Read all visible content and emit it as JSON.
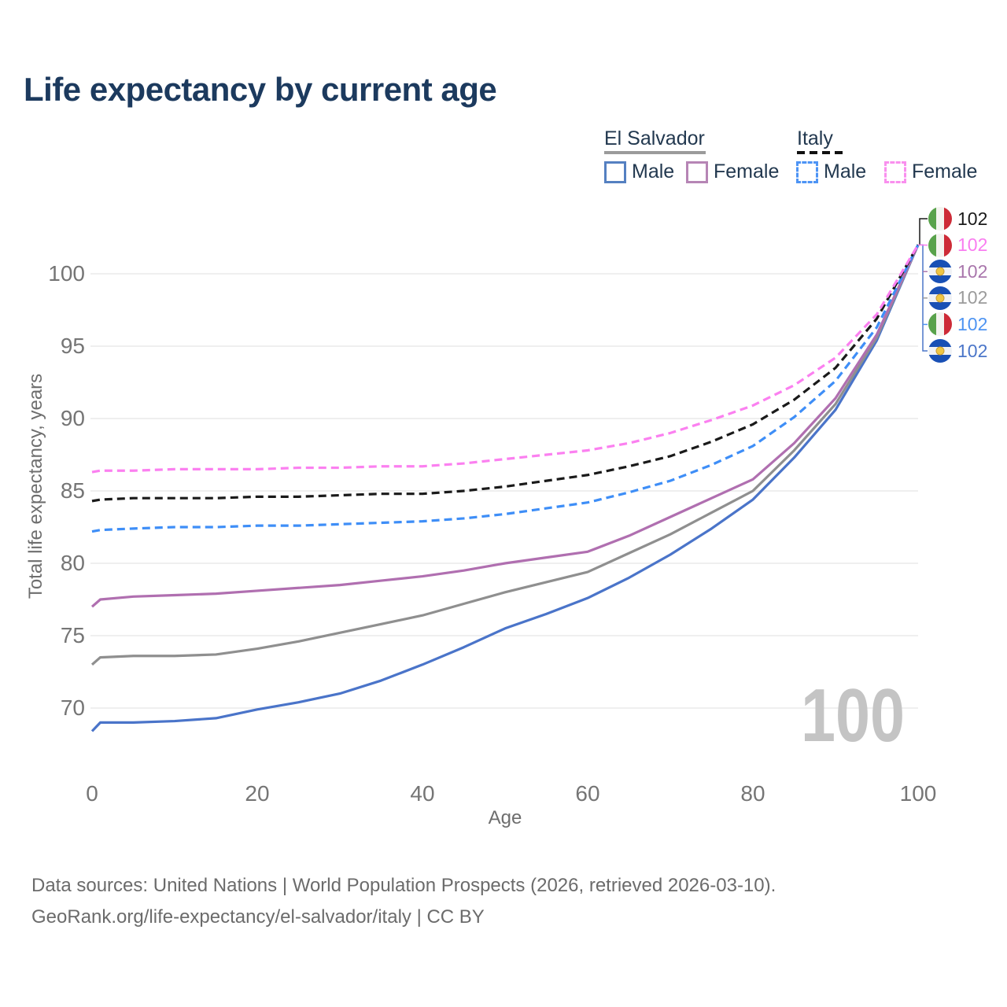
{
  "title": "Life expectancy by current age",
  "y_axis_title": "Total life expectancy, years",
  "x_axis_title": "Age",
  "watermark_age": "100",
  "legend": {
    "groups": [
      {
        "label": "El Salvador",
        "line_style": "solid",
        "sample_color": "#9B9B9B",
        "items": [
          {
            "label": "Male",
            "swatch_color": "#5580C1",
            "dashed": false
          },
          {
            "label": "Female",
            "swatch_color": "#B685B5",
            "dashed": false
          }
        ]
      },
      {
        "label": "Italy",
        "line_style": "dashed",
        "sample_color": "#111111",
        "items": [
          {
            "label": "Male",
            "swatch_color": "#4D94F5",
            "dashed": true
          },
          {
            "label": "Female",
            "swatch_color": "#F990EE",
            "dashed": true
          }
        ]
      }
    ]
  },
  "end_labels": [
    {
      "flag": "italy",
      "value": "102",
      "color": "#1A1A1A"
    },
    {
      "flag": "italy",
      "value": "102",
      "color": "#F97DF0"
    },
    {
      "flag": "el-salvador",
      "value": "102",
      "color": "#A976AC"
    },
    {
      "flag": "el-salvador",
      "value": "102",
      "color": "#9B9B9B"
    },
    {
      "flag": "italy",
      "value": "102",
      "color": "#4E94F2"
    },
    {
      "flag": "el-salvador",
      "value": "102",
      "color": "#4B76C9"
    }
  ],
  "footer": {
    "line1": "Data sources: United Nations | World Population Prospects (2026, retrieved 2026-03-10).",
    "line2": "GeoRank.org/life-expectancy/el-salvador/italy | CC BY"
  },
  "chart_data": {
    "type": "line",
    "title": "Life expectancy by current age",
    "xlabel": "Age",
    "ylabel": "Total life expectancy, years",
    "xlim": [
      0,
      100
    ],
    "ylim": [
      68,
      102.5
    ],
    "x_ticks": [
      0,
      20,
      40,
      60,
      80,
      100
    ],
    "y_ticks": [
      70,
      75,
      80,
      85,
      90,
      95,
      100
    ],
    "grid": "horizontal",
    "legend_position": "top-right",
    "x": [
      0,
      1,
      5,
      10,
      15,
      20,
      25,
      30,
      35,
      40,
      45,
      50,
      55,
      60,
      65,
      70,
      75,
      80,
      85,
      90,
      95,
      100
    ],
    "series": [
      {
        "id": "el-salvador-male",
        "name": "El Salvador Male",
        "country": "El Salvador",
        "sex": "Male",
        "color": "#4A74C9",
        "dashed": false,
        "values": [
          68.4,
          69.0,
          69.0,
          69.1,
          69.3,
          69.9,
          70.4,
          71.0,
          71.9,
          73.0,
          74.2,
          75.5,
          76.5,
          77.6,
          79.0,
          80.6,
          82.4,
          84.4,
          87.3,
          90.6,
          95.4,
          102
        ]
      },
      {
        "id": "el-salvador-total",
        "name": "El Salvador Both sexes",
        "country": "El Salvador",
        "sex": "Both",
        "color": "#8F8F8F",
        "dashed": false,
        "values": [
          73.0,
          73.5,
          73.6,
          73.6,
          73.7,
          74.1,
          74.6,
          75.2,
          75.8,
          76.4,
          77.2,
          78.0,
          78.7,
          79.4,
          80.7,
          82.0,
          83.5,
          85.0,
          87.8,
          91.0,
          95.6,
          102
        ]
      },
      {
        "id": "el-salvador-female",
        "name": "El Salvador Female",
        "country": "El Salvador",
        "sex": "Female",
        "color": "#B06FB0",
        "dashed": false,
        "values": [
          77.0,
          77.5,
          77.7,
          77.8,
          77.9,
          78.1,
          78.3,
          78.5,
          78.8,
          79.1,
          79.5,
          80.0,
          80.4,
          80.8,
          81.9,
          83.2,
          84.5,
          85.8,
          88.3,
          91.4,
          95.8,
          102
        ]
      },
      {
        "id": "italy-male",
        "name": "Italy Male",
        "country": "Italy",
        "sex": "Male",
        "color": "#3E8EF7",
        "dashed": true,
        "values": [
          82.2,
          82.3,
          82.4,
          82.5,
          82.5,
          82.6,
          82.6,
          82.7,
          82.8,
          82.9,
          83.1,
          83.4,
          83.8,
          84.2,
          84.9,
          85.7,
          86.8,
          88.1,
          90.1,
          92.6,
          96.3,
          102
        ]
      },
      {
        "id": "italy-total",
        "name": "Italy Both sexes",
        "country": "Italy",
        "sex": "Both",
        "color": "#1A1A1A",
        "dashed": true,
        "values": [
          84.3,
          84.4,
          84.5,
          84.5,
          84.5,
          84.6,
          84.6,
          84.7,
          84.8,
          84.8,
          85.0,
          85.3,
          85.7,
          86.1,
          86.7,
          87.4,
          88.4,
          89.6,
          91.3,
          93.5,
          96.9,
          102
        ]
      },
      {
        "id": "italy-female",
        "name": "Italy Female",
        "country": "Italy",
        "sex": "Female",
        "color": "#FB80F0",
        "dashed": true,
        "values": [
          86.3,
          86.4,
          86.4,
          86.5,
          86.5,
          86.5,
          86.6,
          86.6,
          86.7,
          86.7,
          86.9,
          87.2,
          87.5,
          87.8,
          88.3,
          89.0,
          89.9,
          90.9,
          92.3,
          94.2,
          97.2,
          102
        ]
      }
    ],
    "end_annotation_value": 102
  }
}
